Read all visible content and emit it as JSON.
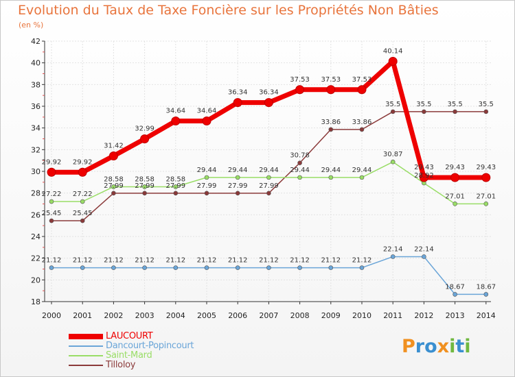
{
  "chart_data": {
    "type": "line",
    "title": "Evolution du Taux de Taxe Foncière sur les Propriétés Non Bâties",
    "ylabel": "(en %)",
    "xlabel": "",
    "ylim": [
      18,
      42
    ],
    "yticks": [
      18,
      20,
      22,
      24,
      26,
      28,
      30,
      32,
      34,
      36,
      38,
      40,
      42
    ],
    "categories": [
      "2000",
      "2001",
      "2002",
      "2003",
      "2004",
      "2005",
      "2006",
      "2007",
      "2008",
      "2009",
      "2010",
      "2011",
      "2012",
      "2013",
      "2014"
    ],
    "series": [
      {
        "name": "LAUCOURT",
        "color": "#ee0000",
        "values": [
          29.92,
          29.92,
          31.42,
          32.99,
          34.64,
          34.64,
          36.34,
          36.34,
          37.53,
          37.53,
          37.53,
          40.14,
          29.43,
          29.43,
          29.43
        ],
        "labels": [
          "29.92",
          "29.92",
          "31.42",
          "32.99",
          "34.64",
          "34.64",
          "36.34",
          "36.34",
          "37.53",
          "37.53",
          "37.53",
          "40.14",
          "29.43",
          "29.43",
          "29.43"
        ]
      },
      {
        "name": "Dancourt-Popincourt",
        "color": "#6aa5d8",
        "values": [
          21.12,
          21.12,
          21.12,
          21.12,
          21.12,
          21.12,
          21.12,
          21.12,
          21.12,
          21.12,
          21.12,
          22.14,
          22.14,
          18.67,
          18.67
        ],
        "labels": [
          "21.12",
          "21.12",
          "21.12",
          "21.12",
          "21.12",
          "21.12",
          "21.12",
          "21.12",
          "21.12",
          "21.12",
          "21.12",
          "22.14",
          "22.14",
          "18.67",
          "18.67"
        ]
      },
      {
        "name": "Saint-Mard",
        "color": "#99dd66",
        "values": [
          27.22,
          27.22,
          28.58,
          28.58,
          28.58,
          29.44,
          29.44,
          29.44,
          29.44,
          29.44,
          29.44,
          30.87,
          28.92,
          27.01,
          27.01
        ],
        "labels": [
          "27.22",
          "27.22",
          "28.58",
          "28.58",
          "28.58",
          "29.44",
          "29.44",
          "29.44",
          "29.44",
          "29.44",
          "29.44",
          "30.87",
          "28.92",
          "27.01",
          "27.01"
        ]
      },
      {
        "name": "Tilloloy",
        "color": "#8b3a3a",
        "values": [
          25.45,
          25.45,
          27.99,
          27.99,
          27.99,
          27.99,
          27.99,
          27.99,
          30.78,
          33.86,
          33.86,
          35.5,
          35.5,
          35.5,
          35.5
        ],
        "labels": [
          "25.45",
          "25.45",
          "27.99",
          "27.99",
          "27.99",
          "27.99",
          "27.99",
          "27.99",
          "30.78",
          "33.86",
          "33.86",
          "35.5",
          "35.5",
          "35.5",
          "35.5"
        ]
      }
    ],
    "legend_position": "bottom-left",
    "grid": true
  },
  "logo": {
    "text": "Proxiti",
    "letters": [
      "P",
      "r",
      "o",
      "x",
      "i",
      "t",
      "i"
    ],
    "colors": [
      "#f09020",
      "#3a8fd0",
      "#3a8fd0",
      "#f09020",
      "#70b840",
      "#3a8fd0",
      "#70b840"
    ]
  }
}
